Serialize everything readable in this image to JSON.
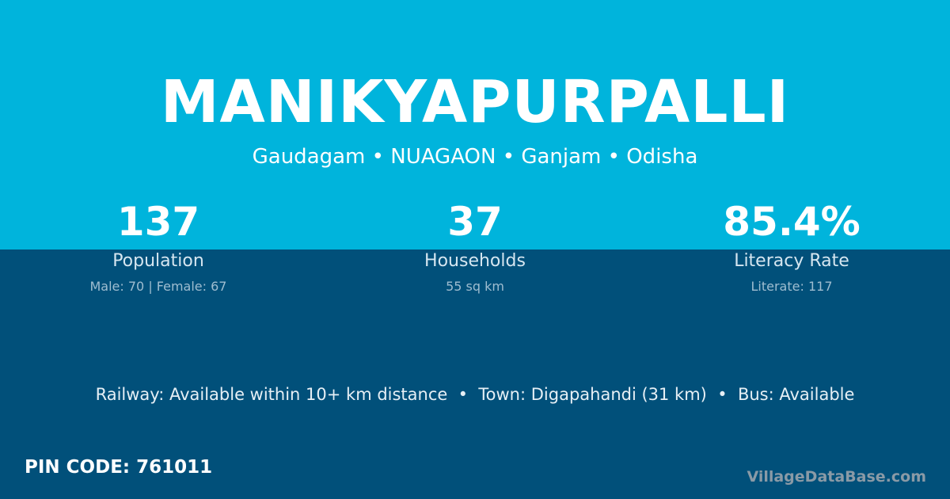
{
  "title": "MANIKYAPURPALLI",
  "location": "Gaudagam • NUAGAON • Ganjam • Odisha",
  "stats": [
    {
      "value": "137",
      "label": "Population",
      "detail": "Male: 70 | Female: 67"
    },
    {
      "value": "37",
      "label": "Households",
      "detail": "55 sq km"
    },
    {
      "value": "85.4%",
      "label": "Literacy Rate",
      "detail": "Literate: 117"
    }
  ],
  "info": "Railway: Available within 10+ km distance  •  Town: Digapahandi (31 km)  •  Bus: Available",
  "pin": "PIN CODE: 761011",
  "brand": "VillageDataBase.com",
  "colors": {
    "top": "#00b4dc",
    "bottom": "#01507a"
  }
}
